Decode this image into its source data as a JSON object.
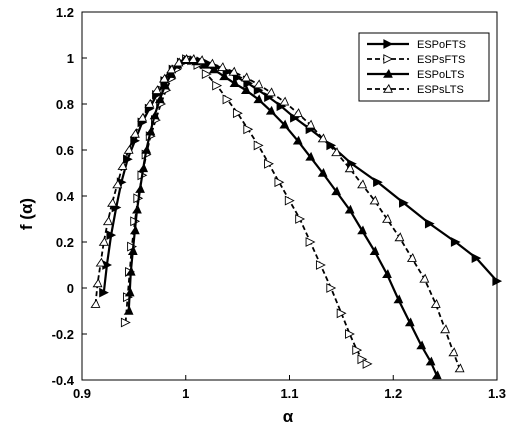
{
  "chart_data": {
    "type": "line",
    "title": "",
    "xlabel": "α",
    "ylabel": "f (α)",
    "xlim": [
      0.9,
      1.3
    ],
    "ylim": [
      -0.4,
      1.2
    ],
    "xticks": [
      0.9,
      1.0,
      1.1,
      1.2,
      1.3
    ],
    "xtick_labels": [
      "0.9",
      "1",
      "1.1",
      "1.2",
      "1.3"
    ],
    "yticks": [
      -0.4,
      -0.2,
      0,
      0.2,
      0.4,
      0.6,
      0.8,
      1.0,
      1.2
    ],
    "ytick_labels": [
      "-0.4",
      "-0.2",
      "0",
      "0.2",
      "0.4",
      "0.6",
      "0.8",
      "1",
      "1.2"
    ],
    "grid": false,
    "legend_position": "top-right",
    "series": [
      {
        "name": "ESPoFTS",
        "line_style": "solid",
        "marker": "filled-triangle-right",
        "color": "#000000",
        "x": [
          0.921,
          0.924,
          0.928,
          0.933,
          0.938,
          0.944,
          0.951,
          0.958,
          0.965,
          0.972,
          0.98,
          0.988,
          0.996,
          1.002,
          1.008,
          1.015,
          1.022,
          1.03,
          1.04,
          1.05,
          1.06,
          1.07,
          1.08,
          1.092,
          1.105,
          1.12,
          1.14,
          1.16,
          1.185,
          1.21,
          1.235,
          1.26,
          1.28,
          1.3
        ],
        "y": [
          -0.02,
          0.1,
          0.23,
          0.35,
          0.46,
          0.56,
          0.64,
          0.72,
          0.78,
          0.84,
          0.9,
          0.95,
          0.98,
          0.99,
          0.99,
          0.985,
          0.975,
          0.96,
          0.94,
          0.915,
          0.89,
          0.86,
          0.83,
          0.79,
          0.74,
          0.69,
          0.62,
          0.54,
          0.46,
          0.37,
          0.28,
          0.2,
          0.13,
          0.03
        ]
      },
      {
        "name": "ESPsFTS",
        "line_style": "dashed",
        "marker": "open-triangle-right",
        "color": "#000000",
        "x": [
          0.942,
          0.944,
          0.946,
          0.948,
          0.951,
          0.954,
          0.958,
          0.962,
          0.966,
          0.971,
          0.976,
          0.981,
          0.986,
          0.991,
          0.996,
          1.001,
          1.006,
          1.012,
          1.02,
          1.03,
          1.04,
          1.05,
          1.06,
          1.07,
          1.08,
          1.09,
          1.1,
          1.11,
          1.12,
          1.13,
          1.14,
          1.15,
          1.158,
          1.165,
          1.17,
          1.175
        ],
        "y": [
          -0.15,
          -0.04,
          0.07,
          0.18,
          0.29,
          0.39,
          0.49,
          0.58,
          0.66,
          0.73,
          0.8,
          0.86,
          0.91,
          0.95,
          0.98,
          0.995,
          0.99,
          0.97,
          0.93,
          0.88,
          0.82,
          0.76,
          0.69,
          0.62,
          0.54,
          0.46,
          0.38,
          0.3,
          0.2,
          0.1,
          0.0,
          -0.11,
          -0.2,
          -0.27,
          -0.31,
          -0.33
        ]
      },
      {
        "name": "ESPoLTS",
        "line_style": "solid",
        "marker": "filled-triangle-up",
        "color": "#000000",
        "x": [
          0.945,
          0.946,
          0.947,
          0.949,
          0.951,
          0.953,
          0.956,
          0.959,
          0.962,
          0.966,
          0.97,
          0.975,
          0.98,
          0.986,
          0.992,
          0.998,
          1.004,
          1.01,
          1.018,
          1.027,
          1.037,
          1.047,
          1.058,
          1.07,
          1.082,
          1.095,
          1.108,
          1.12,
          1.132,
          1.145,
          1.158,
          1.17,
          1.182,
          1.194,
          1.205,
          1.216,
          1.227,
          1.236,
          1.242
        ],
        "y": [
          -0.1,
          -0.02,
          0.07,
          0.16,
          0.25,
          0.34,
          0.43,
          0.52,
          0.6,
          0.68,
          0.75,
          0.82,
          0.88,
          0.93,
          0.97,
          0.99,
          0.99,
          0.985,
          0.97,
          0.95,
          0.92,
          0.89,
          0.86,
          0.82,
          0.77,
          0.71,
          0.64,
          0.57,
          0.5,
          0.42,
          0.34,
          0.25,
          0.16,
          0.06,
          -0.05,
          -0.15,
          -0.25,
          -0.32,
          -0.38
        ]
      },
      {
        "name": "ESPsLTS",
        "line_style": "dashed",
        "marker": "open-triangle-up",
        "color": "#000000",
        "x": [
          0.913,
          0.915,
          0.918,
          0.921,
          0.925,
          0.929,
          0.934,
          0.939,
          0.945,
          0.951,
          0.958,
          0.965,
          0.972,
          0.979,
          0.986,
          0.993,
          1.0,
          1.007,
          1.015,
          1.025,
          1.035,
          1.046,
          1.058,
          1.07,
          1.082,
          1.095,
          1.108,
          1.12,
          1.132,
          1.145,
          1.158,
          1.17,
          1.182,
          1.194,
          1.206,
          1.218,
          1.23,
          1.241,
          1.25,
          1.258,
          1.264
        ],
        "y": [
          -0.07,
          0.02,
          0.11,
          0.2,
          0.29,
          0.37,
          0.45,
          0.53,
          0.6,
          0.67,
          0.74,
          0.8,
          0.86,
          0.91,
          0.95,
          0.98,
          0.995,
          0.995,
          0.99,
          0.975,
          0.96,
          0.94,
          0.915,
          0.885,
          0.85,
          0.81,
          0.76,
          0.71,
          0.65,
          0.59,
          0.52,
          0.45,
          0.38,
          0.3,
          0.22,
          0.13,
          0.04,
          -0.07,
          -0.18,
          -0.28,
          -0.35
        ]
      }
    ]
  }
}
